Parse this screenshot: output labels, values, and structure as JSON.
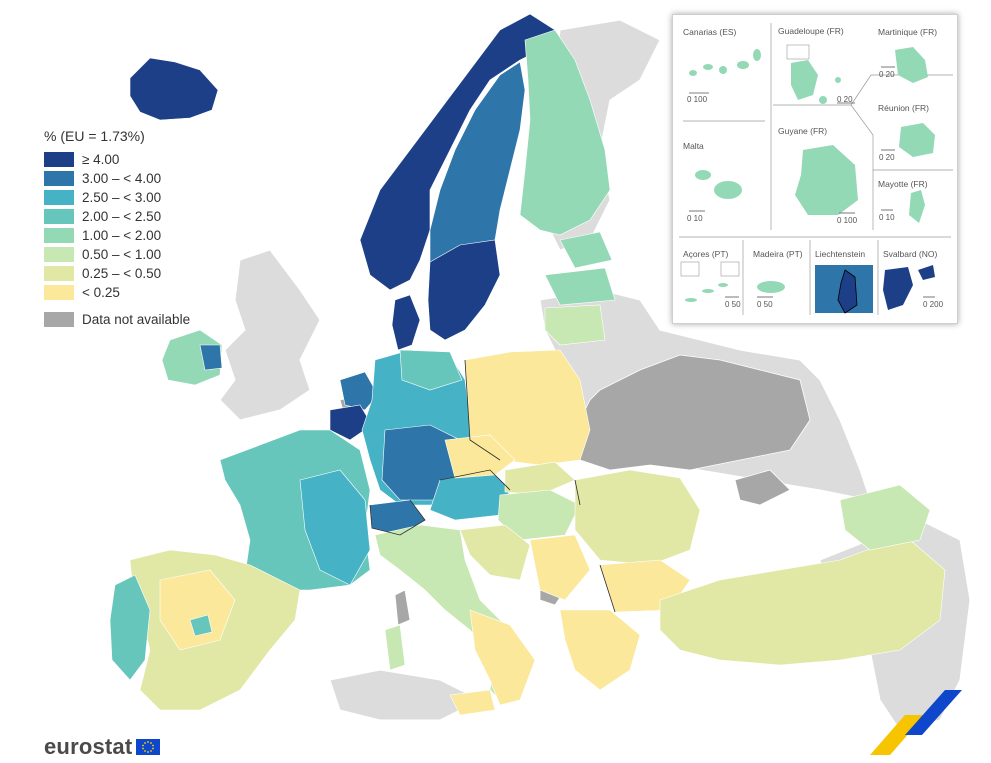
{
  "legend": {
    "title": "% (EU = 1.73%)",
    "classes": [
      {
        "label": "≥ 4.00",
        "color": "#1d3f88"
      },
      {
        "label": "3.00 – < 4.00",
        "color": "#2e75a9"
      },
      {
        "label": "2.50 – < 3.00",
        "color": "#45b2c6"
      },
      {
        "label": "2.00 – < 2.50",
        "color": "#66c6bb"
      },
      {
        "label": "1.00 – < 2.00",
        "color": "#94d9b6"
      },
      {
        "label": "0.50 – < 1.00",
        "color": "#c7e7b3"
      },
      {
        "label": "0.25 – < 0.50",
        "color": "#e1e8a6"
      },
      {
        "label": "< 0.25",
        "color": "#fce89a"
      }
    ],
    "not_available": {
      "label": "Data not available",
      "color": "#a7a7a7"
    }
  },
  "insets": [
    {
      "name": "Canarias (ES)",
      "scale": "0 100"
    },
    {
      "name": "Guadeloupe (FR)",
      "scale": "0 20"
    },
    {
      "name": "Martinique (FR)",
      "scale": "0 20"
    },
    {
      "name": "Réunion (FR)",
      "scale": "0 20"
    },
    {
      "name": "Malta",
      "scale": "0 10"
    },
    {
      "name": "Guyane (FR)",
      "scale": "0 100"
    },
    {
      "name": "Mayotte (FR)",
      "scale": "0 10"
    },
    {
      "name": "Açores (PT)",
      "scale": "0 50"
    },
    {
      "name": "Madeira (PT)",
      "scale": "0 50"
    },
    {
      "name": "Liechtenstein",
      "scale": ""
    },
    {
      "name": "Svalbard (NO)",
      "scale": "0 200"
    }
  ],
  "brand": {
    "wordmark": "eurostat"
  },
  "colors": {
    "non_eu": "#dcdcdc",
    "sea": "#ffffff",
    "border": "#2b2b2b",
    "region_border": "#ffffff"
  }
}
